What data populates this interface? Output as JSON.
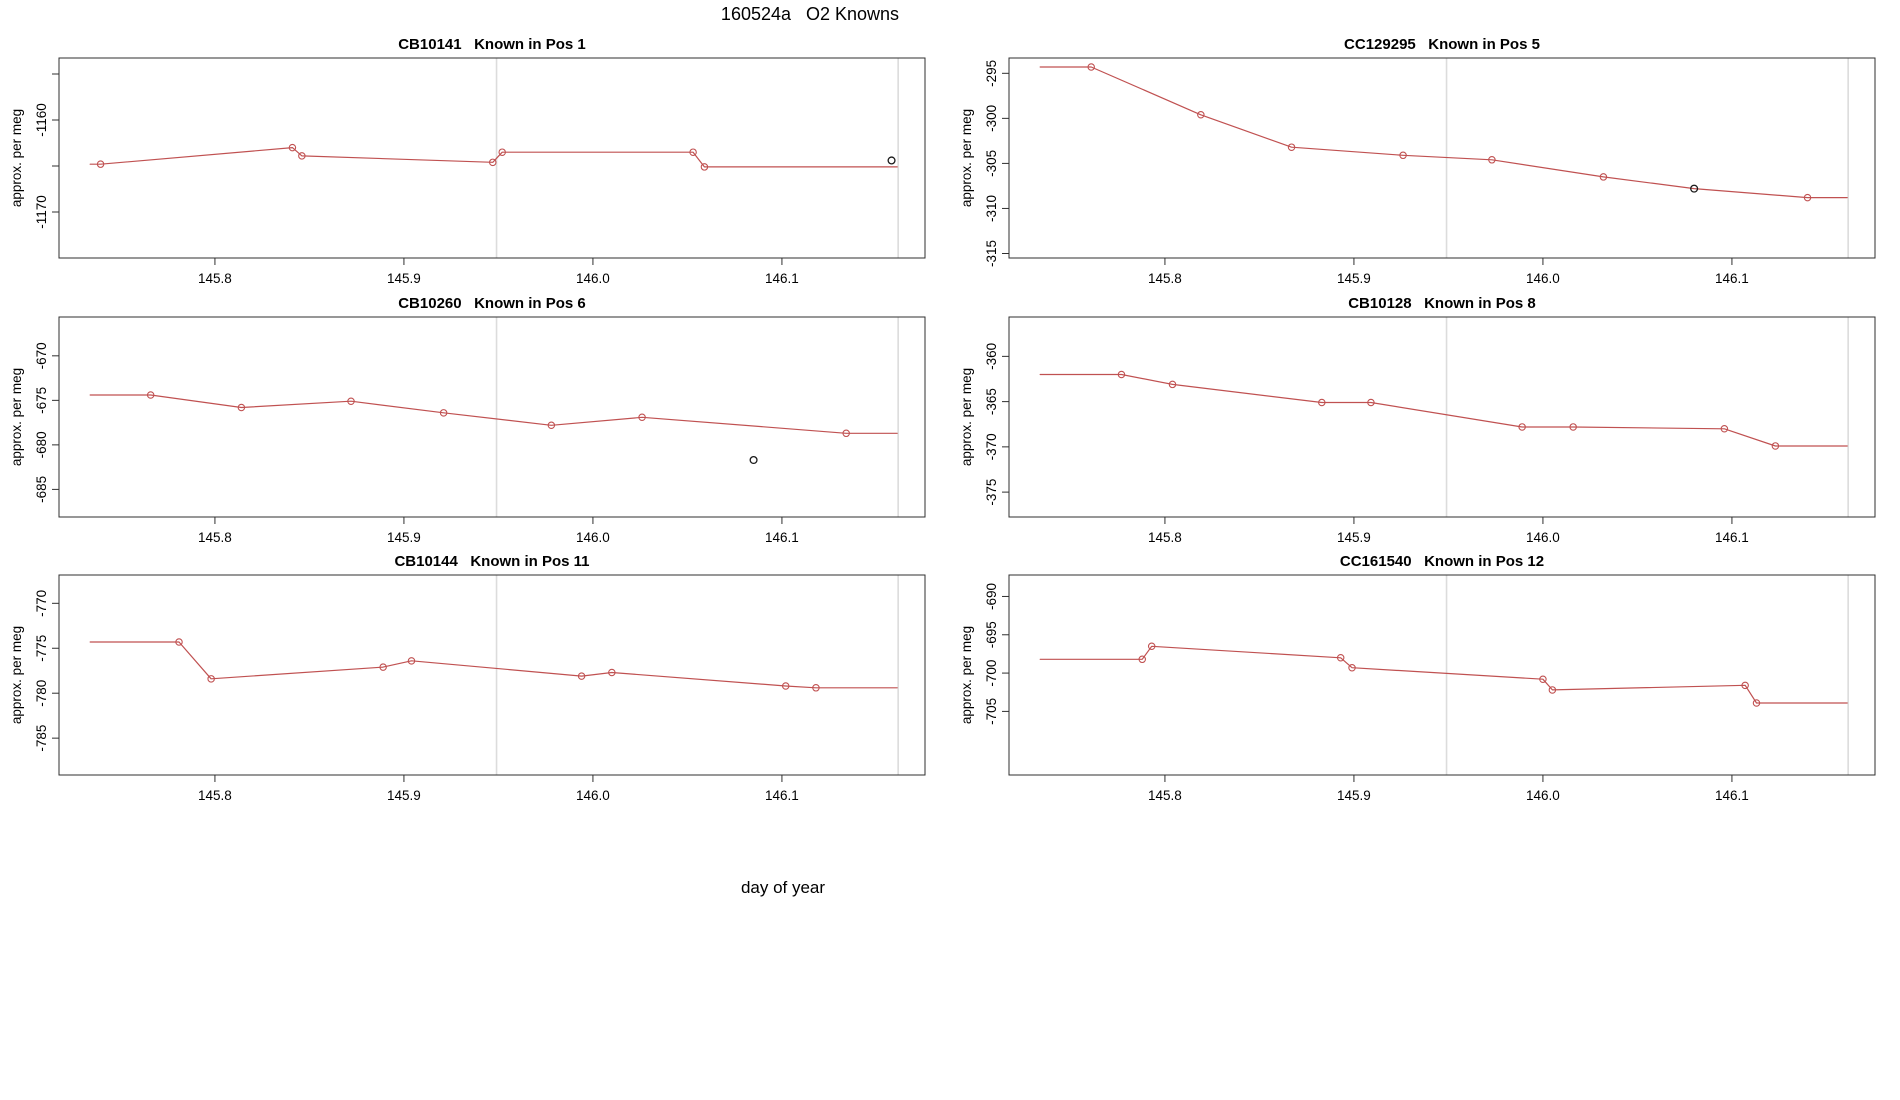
{
  "header": {
    "title": "160524a   O2 Knowns"
  },
  "footer": {
    "xlabel": "day of year"
  },
  "style": {
    "line_color": "#c05151",
    "marker_color": "#c05151",
    "extra_point_color": "#1a1a1a",
    "guide_color": "#dcdcdc",
    "axis_color": "#2f2f2f",
    "text_color": "#000000"
  },
  "axes": {
    "ylabel": "approx. per meg",
    "xlim": [
      145.7175,
      146.1757
    ],
    "x_ticks": [
      145.8,
      145.9,
      146.0,
      146.1
    ],
    "x_tick_labels": [
      "145.8",
      "145.9",
      "146.0",
      "146.1"
    ],
    "guide_x": [
      145.949,
      146.1615
    ]
  },
  "chart_data": [
    {
      "type": "line",
      "id": "CB10141",
      "position_label": "Known in Pos 1",
      "title": "CB10141   Known in Pos 1",
      "ylim": [
        -1175.0,
        -1153.26
      ],
      "y_ticks": [
        -1155,
        -1160,
        -1165,
        -1170
      ],
      "y_tick_labels": [
        "",
        "-1160",
        "",
        "-1170"
      ],
      "line_points": [
        [
          145.734,
          -1164.8
        ],
        [
          145.7395,
          -1164.8
        ],
        [
          145.841,
          -1163.0
        ],
        [
          145.846,
          -1163.9
        ],
        [
          145.947,
          -1164.6
        ],
        [
          145.952,
          -1163.5
        ],
        [
          146.053,
          -1163.5
        ],
        [
          146.059,
          -1165.1
        ],
        [
          146.161,
          -1165.1
        ]
      ],
      "marker_indices": [
        1,
        2,
        3,
        4,
        5,
        6,
        7
      ],
      "black_on_line_indices": [],
      "extra_points": [
        [
          146.158,
          -1164.4
        ]
      ]
    },
    {
      "type": "line",
      "id": "CC129295",
      "position_label": "Known in Pos 5",
      "title": "CC129295   Known in Pos 5",
      "ylim": [
        -315.5,
        -293.3
      ],
      "y_ticks": [
        -295,
        -300,
        -305,
        -310,
        -315
      ],
      "y_tick_labels": [
        "-295",
        "-300",
        "-305",
        "-310",
        "-315"
      ],
      "line_points": [
        [
          145.734,
          -294.3
        ],
        [
          145.761,
          -294.3
        ],
        [
          145.819,
          -299.6
        ],
        [
          145.867,
          -303.2
        ],
        [
          145.926,
          -304.1
        ],
        [
          145.973,
          -304.6
        ],
        [
          146.032,
          -306.5
        ],
        [
          146.08,
          -307.8
        ],
        [
          146.14,
          -308.8
        ],
        [
          146.161,
          -308.8
        ]
      ],
      "marker_indices": [
        1,
        2,
        3,
        4,
        5,
        6,
        8
      ],
      "black_on_line_indices": [
        7
      ],
      "extra_points": []
    },
    {
      "type": "line",
      "id": "CB10260",
      "position_label": "Known in Pos 6",
      "title": "CB10260   Known in Pos 6",
      "ylim": [
        -688.1,
        -665.64
      ],
      "y_ticks": [
        -670,
        -675,
        -680,
        -685
      ],
      "y_tick_labels": [
        "-670",
        "-675",
        "-680",
        "-685"
      ],
      "line_points": [
        [
          145.734,
          -674.4
        ],
        [
          145.766,
          -674.4
        ],
        [
          145.814,
          -675.8
        ],
        [
          145.872,
          -675.1
        ],
        [
          145.921,
          -676.4
        ],
        [
          145.978,
          -677.8
        ],
        [
          146.026,
          -676.9
        ],
        [
          146.134,
          -678.7
        ],
        [
          146.161,
          -678.7
        ]
      ],
      "marker_indices": [
        1,
        2,
        3,
        4,
        5,
        6,
        7
      ],
      "black_on_line_indices": [],
      "extra_points": [
        [
          146.085,
          -681.7
        ]
      ]
    },
    {
      "type": "line",
      "id": "CB10128",
      "position_label": "Known in Pos 8",
      "title": "CB10128   Known in Pos 8",
      "ylim": [
        -377.75,
        -355.65
      ],
      "y_ticks": [
        -360,
        -365,
        -370,
        -375
      ],
      "y_tick_labels": [
        "-360",
        "-365",
        "-370",
        "-375"
      ],
      "line_points": [
        [
          145.734,
          -362.0
        ],
        [
          145.777,
          -362.0
        ],
        [
          145.804,
          -363.1
        ],
        [
          145.883,
          -365.1
        ],
        [
          145.909,
          -365.1
        ],
        [
          145.989,
          -367.8
        ],
        [
          146.016,
          -367.8
        ],
        [
          146.096,
          -368.0
        ],
        [
          146.123,
          -369.9
        ],
        [
          146.161,
          -369.9
        ]
      ],
      "marker_indices": [
        1,
        2,
        3,
        4,
        5,
        6,
        7,
        8
      ],
      "black_on_line_indices": [],
      "extra_points": []
    },
    {
      "type": "line",
      "id": "CB10144",
      "position_label": "Known in Pos 11",
      "title": "CB10144   Known in Pos 11",
      "ylim": [
        -789.1,
        -766.85
      ],
      "y_ticks": [
        -770,
        -775,
        -780,
        -785
      ],
      "y_tick_labels": [
        "-770",
        "-775",
        "-780",
        "-785"
      ],
      "line_points": [
        [
          145.734,
          -774.3
        ],
        [
          145.781,
          -774.3
        ],
        [
          145.798,
          -778.4
        ],
        [
          145.889,
          -777.1
        ],
        [
          145.904,
          -776.4
        ],
        [
          145.994,
          -778.1
        ],
        [
          146.01,
          -777.7
        ],
        [
          146.102,
          -779.2
        ],
        [
          146.118,
          -779.4
        ],
        [
          146.161,
          -779.4
        ]
      ],
      "marker_indices": [
        1,
        2,
        3,
        4,
        5,
        6,
        7,
        8
      ],
      "black_on_line_indices": [],
      "extra_points": []
    },
    {
      "type": "line",
      "id": "CC161540",
      "position_label": "Known in Pos 12",
      "title": "CC161540   Known in Pos 12",
      "ylim": [
        -713.3,
        -687.2
      ],
      "y_ticks": [
        -690,
        -695,
        -700,
        -705
      ],
      "y_tick_labels": [
        "-690",
        "-695",
        "-700",
        "-705"
      ],
      "line_points": [
        [
          145.734,
          -698.2
        ],
        [
          145.788,
          -698.2
        ],
        [
          145.793,
          -696.5
        ],
        [
          145.893,
          -698.0
        ],
        [
          145.899,
          -699.3
        ],
        [
          146.0,
          -700.8
        ],
        [
          146.005,
          -702.2
        ],
        [
          146.107,
          -701.6
        ],
        [
          146.113,
          -703.9
        ],
        [
          146.161,
          -703.9
        ]
      ],
      "marker_indices": [
        1,
        2,
        3,
        4,
        5,
        6,
        7,
        8
      ],
      "black_on_line_indices": [],
      "extra_points": []
    }
  ]
}
